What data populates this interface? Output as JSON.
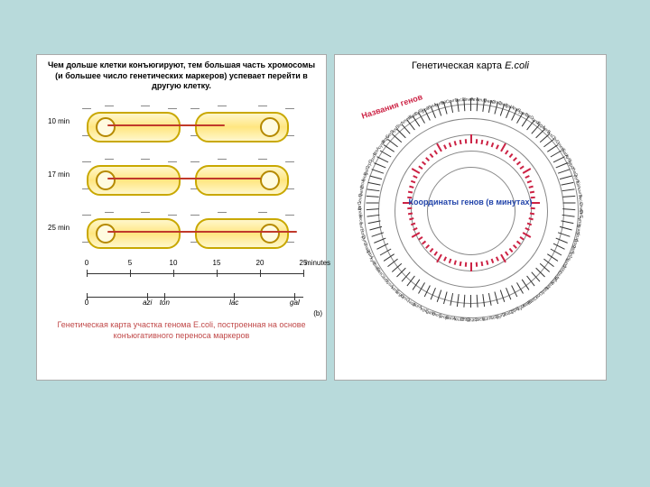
{
  "page": {
    "bg_color": "#b8dadb"
  },
  "left_panel": {
    "header": "Чем дольше клетки конъюгируют, тем большая часть хромосомы (и большее число генетических маркеров) успевает перейти в другую клетку.",
    "caption": "Генетическая карта участка генома E.coli, построенная на основе конъюгативного переноса маркеров",
    "caption_color": "#c04848",
    "rows": [
      {
        "time": "10 min",
        "dna_len": 50
      },
      {
        "time": "17 min",
        "dna_len": 90
      },
      {
        "time": "25 min",
        "dna_len": 130
      }
    ],
    "dna_color": "#c0392b",
    "cell_fill_top": "#fff7cc",
    "cell_fill_mid": "#ffe680",
    "cell_border": "#c9a800",
    "axis": {
      "ticks": [
        0,
        5,
        10,
        15,
        20,
        25
      ],
      "unit": "minutes",
      "markers": [
        {
          "label": "0",
          "pos": 0
        },
        {
          "label": "azi",
          "pos": 7
        },
        {
          "label": "ton",
          "pos": 9
        },
        {
          "label": "lac",
          "pos": 17
        },
        {
          "label": "gal",
          "pos": 24
        }
      ],
      "b_label": "(b)"
    }
  },
  "right_panel": {
    "title_prefix": "Генетическая карта ",
    "title_species": "E.coli",
    "gene_names_label": "Названия генов",
    "gene_names_color": "#cc2244",
    "center_label": "Координаты генов (в минутах)",
    "center_color": "#2244aa",
    "ring_color": "#888",
    "dash_color": "#cc2244",
    "n_gene_ticks": 96,
    "n_inner_dashes": 72,
    "ring_radii": [
      48,
      66,
      84,
      102,
      118
    ]
  }
}
